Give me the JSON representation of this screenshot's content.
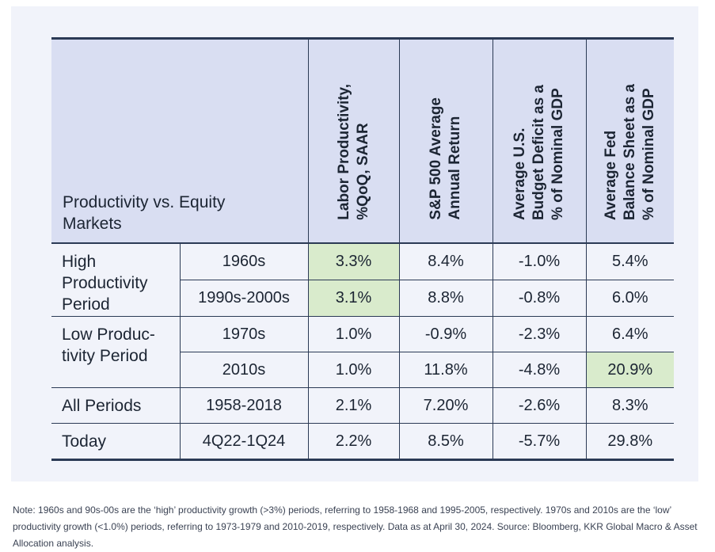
{
  "table": {
    "title": "Productivity vs. Equity\nMarkets",
    "columns": [
      "Labor Productivity,\n%QoQ, SAAR",
      "S&P 500 Average\nAnnual Return",
      "Average U.S.\nBudget Deficit as a\n% of Nominal GDP",
      "Average Fed\nBalance Sheet as a\n% of Nominal GDP"
    ],
    "groups": [
      "High\nProductivity\nPeriod",
      "Low Produc-\ntivity Period",
      "All Periods",
      "Today"
    ],
    "rows": [
      {
        "period": "1960s",
        "values": [
          "3.3%",
          "8.4%",
          "-1.0%",
          "5.4%"
        ]
      },
      {
        "period": "1990s-2000s",
        "values": [
          "3.1%",
          "8.8%",
          "-0.8%",
          "6.0%"
        ]
      },
      {
        "period": "1970s",
        "values": [
          "1.0%",
          "-0.9%",
          "-2.3%",
          "6.4%"
        ]
      },
      {
        "period": "2010s",
        "values": [
          "1.0%",
          "11.8%",
          "-4.8%",
          "20.9%"
        ]
      },
      {
        "period": "1958-2018",
        "values": [
          "2.1%",
          "7.20%",
          "-2.6%",
          "8.3%"
        ]
      },
      {
        "period": "4Q22-1Q24",
        "values": [
          "2.2%",
          "8.5%",
          "-5.7%",
          "29.8%"
        ]
      }
    ],
    "highlight_color": "#d9ebcc",
    "header_color": "#d9def2"
  },
  "note": "Note: 1960s and 90s-00s are the ‘high’ productivity growth (>3%) periods, referring to 1958-1968 and 1995-2005, respectively. 1970s and 2010s are the ‘low’ productivity growth (<1.0%) periods, referring to 1973-1979 and 2010-2019, respectively. Data as at April 30, 2024. Source: Bloomberg, KKR Global Macro & Asset Allocation analysis."
}
